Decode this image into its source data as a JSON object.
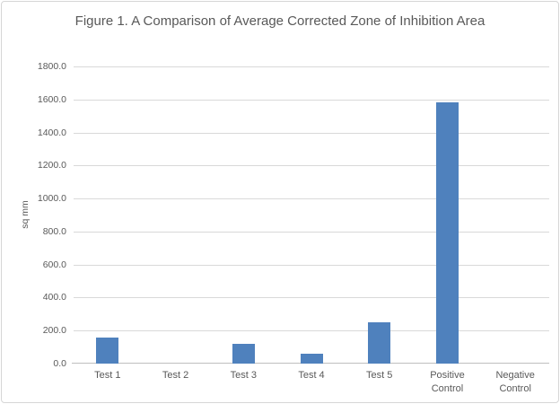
{
  "figure": {
    "background": "#ffffff",
    "border_color": "#d6d6d6"
  },
  "chart_data": {
    "type": "bar",
    "title": "Figure 1. A Comparison of Average Corrected Zone of Inhibition Area",
    "xlabel": "",
    "ylabel": "sq mm",
    "categories": [
      "Test 1",
      "Test 2",
      "Test 3",
      "Test 4",
      "Test 5",
      "Positive Control",
      "Negative Control"
    ],
    "values": [
      160,
      0,
      120,
      58,
      253,
      1585,
      0
    ],
    "ylim": [
      0,
      1800
    ],
    "ytick_step": 200,
    "ytick_labels": [
      "0.0",
      "200.0",
      "400.0",
      "600.0",
      "800.0",
      "1000.0",
      "1200.0",
      "1400.0",
      "1600.0",
      "1800.0"
    ],
    "grid": true,
    "legend_position": "none",
    "bar_color": "#4f81bd",
    "gridline_color": "#d9d9d9",
    "axis_line_color": "#bfbfbf",
    "text_color": "#595959"
  }
}
